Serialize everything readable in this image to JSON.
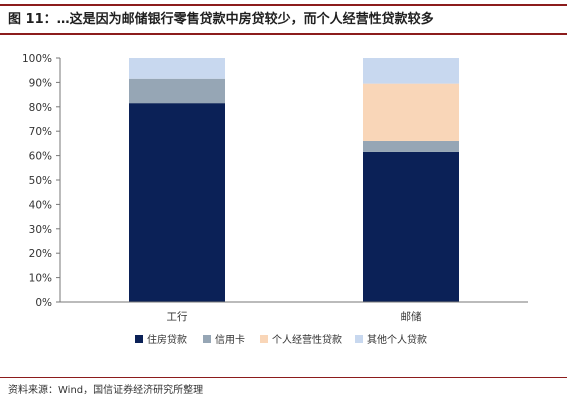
{
  "figure": {
    "title": "图 11：…这是因为邮储银行零售贷款中房贷较少，而个人经营性贷款较多",
    "source": "资料来源：Wind，国信证券经济研究所整理"
  },
  "colors": {
    "header_rule": "#8c1c1c",
    "axis": "#777777",
    "tick_text": "#333333"
  },
  "chart_data": {
    "type": "bar",
    "stacked": true,
    "categories": [
      "工行",
      "邮储"
    ],
    "series": [
      {
        "name": "住房贷款",
        "values": [
          81.5,
          61.5
        ],
        "color": "#0b2157"
      },
      {
        "name": "信用卡",
        "values": [
          10.0,
          4.5
        ],
        "color": "#96a6b5"
      },
      {
        "name": "个人经营性贷款",
        "values": [
          0,
          23.5
        ],
        "color": "#f9d6b8"
      },
      {
        "name": "其他个人贷款",
        "values": [
          8.5,
          10.5
        ],
        "color": "#c8d8ef"
      }
    ],
    "ylim": [
      0,
      100
    ],
    "y_tick_values": [
      0,
      10,
      20,
      30,
      40,
      50,
      60,
      70,
      80,
      90,
      100
    ],
    "y_ticks": [
      "0%",
      "10%",
      "20%",
      "30%",
      "40%",
      "50%",
      "60%",
      "70%",
      "80%",
      "90%",
      "100%"
    ],
    "grid": false,
    "legend_position": "bottom"
  }
}
